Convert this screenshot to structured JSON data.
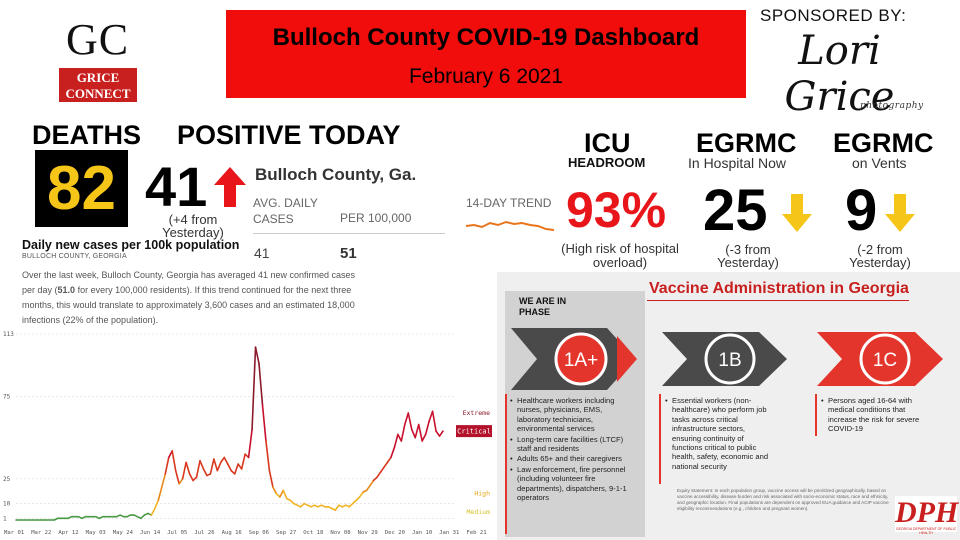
{
  "logo": {
    "letters": "GC",
    "badge_line1": "GRICE",
    "badge_line2": "CONNECT"
  },
  "header": {
    "title": "Bulloch County COVID-19 Dashboard",
    "date": "February 6 2021"
  },
  "sponsor": {
    "label": "SPONSORED BY:",
    "name": "Lori Grice",
    "tagline": "photography"
  },
  "deaths": {
    "label": "DEATHS",
    "value": "82"
  },
  "positive_today": {
    "label": "POSITIVE TODAY",
    "value": "41",
    "change_line1": "(+4 from",
    "change_line2": "Yesterday)"
  },
  "county_stats": {
    "title": "Bulloch County, Ga.",
    "col1_line1": "AVG. DAILY",
    "col1_line2": "CASES",
    "col2": "PER 100,000",
    "avg_daily": "41",
    "per_100k": "51"
  },
  "trend_label": "14-DAY TREND",
  "icu": {
    "label": "ICU",
    "sublabel": "HEADROOM",
    "value": "93%",
    "note_line1": "(High risk of hospital",
    "note_line2": "overload)"
  },
  "egrmc_hospital": {
    "label": "EGRMC",
    "sublabel": "In Hospital Now",
    "value": "25",
    "note_line1": "(-3 from",
    "note_line2": "Yesterday)"
  },
  "egrmc_vents": {
    "label": "EGRMC",
    "sublabel": "on Vents",
    "value": "9",
    "note_line1": "(-2 from",
    "note_line2": "Yesterday)"
  },
  "chart_section": {
    "title": "Daily new cases per 100k population",
    "subtitle": "BULLOCH COUNTY, GEORGIA",
    "paragraph_pre": "Over the last week, Bulloch County, Georgia has averaged 41 new confirmed cases per day (",
    "paragraph_bold": "51.0",
    "paragraph_post": " for every 100,000 residents). If this trend continued for the next three months, this would translate to approximately 3,600 cases and an estimated 18,000 infections (22% of the population)."
  },
  "chart_data": {
    "type": "line",
    "title": "Daily new cases per 100k population",
    "yticks": [
      "1",
      "10",
      "25",
      "75",
      "113"
    ],
    "ytick_values": [
      1,
      10,
      25,
      75,
      113
    ],
    "ylim": [
      0,
      113
    ],
    "xlabels": [
      "Mar 01",
      "Mar 22",
      "Apr 12",
      "May 03",
      "May 24",
      "Jun 14",
      "Jul 05",
      "Jul 26",
      "Aug 16",
      "Sep 06",
      "Sep 27",
      "Oct 18",
      "Nov 08",
      "Nov 29",
      "Dec 20",
      "Jan 10",
      "Jan 31",
      "Feb 21"
    ],
    "thresholds": [
      {
        "label": "Extreme",
        "value": 65,
        "color": "#8b1a2b"
      },
      {
        "label": "High",
        "value": 16,
        "color": "#e6a519"
      },
      {
        "label": "Medium",
        "value": 5,
        "color": "#d4c02a"
      }
    ],
    "current_label": "Critical",
    "series": [
      {
        "values": [
          0,
          0,
          0,
          0,
          0,
          0,
          0,
          0,
          0,
          0,
          0,
          0,
          1,
          1,
          1,
          1,
          2,
          2,
          2,
          1,
          2,
          2,
          2,
          2,
          1,
          2,
          2,
          2,
          2,
          2,
          3,
          2,
          2,
          3,
          3,
          2,
          1,
          3,
          4,
          3,
          7,
          12,
          20,
          28,
          38,
          42,
          30,
          22,
          25,
          35,
          28,
          24,
          26,
          36,
          31,
          27,
          28,
          37,
          30,
          35,
          38,
          34,
          30,
          28,
          34,
          31,
          40,
          38,
          55,
          105,
          95,
          70,
          48,
          30,
          20,
          16,
          14,
          18,
          13,
          12,
          10,
          9,
          8,
          10,
          9,
          8,
          9,
          8,
          9,
          8,
          8,
          7,
          6,
          9,
          8,
          9,
          8,
          10,
          12,
          14,
          17,
          18,
          21,
          24,
          26,
          29,
          32,
          35,
          38,
          44,
          52,
          48,
          58,
          65,
          55,
          50,
          58,
          48,
          52,
          60,
          66,
          54,
          51,
          54
        ]
      }
    ]
  },
  "vaccine": {
    "title": "Vaccine Administration in Georgia",
    "we_are_line1": "WE ARE IN",
    "we_are_line2": "PHASE",
    "phases": [
      {
        "label": "1A+",
        "items": [
          "Healthcare workers including nurses, physicians, EMS, laboratory technicians, environmental services",
          "Long-term care facilities (LTCF) staff and residents",
          "Adults 65+ and their caregivers",
          "Law enforcement, fire personnel (including volunteer fire departments), dispatchers, 9-1-1 operators"
        ]
      },
      {
        "label": "1B",
        "items": [
          "Essential workers (non-healthcare) who perform job tasks across critical infrastructure sectors, ensuring continuity of functions critical to public health, safety, economic and national security"
        ]
      },
      {
        "label": "1C",
        "items": [
          "Persons aged 16-64 with medical conditions that increase the risk for severe COVID-19"
        ]
      }
    ],
    "equity_statement": "Equity Statement: In each population group, vaccine access will be prioritized geographically, based on vaccine accessibility, disease burden and risk associated with socio-economic status, race and ethnicity, and geographic location. Final populations are dependent on approved EUA guidance and ACIP vaccine eligibility recommendations (e.g., children and pregnant women).",
    "dph_logo": "DPH",
    "dph_caption": "GEORGIA DEPARTMENT OF PUBLIC HEALTH"
  },
  "colors": {
    "accent_red": "#e8161b",
    "arrow_yellow": "#f5c518",
    "banner_red": "#f20d0d"
  },
  "icons": {
    "up": "arrow-up-icon",
    "down": "arrow-down-icon"
  }
}
